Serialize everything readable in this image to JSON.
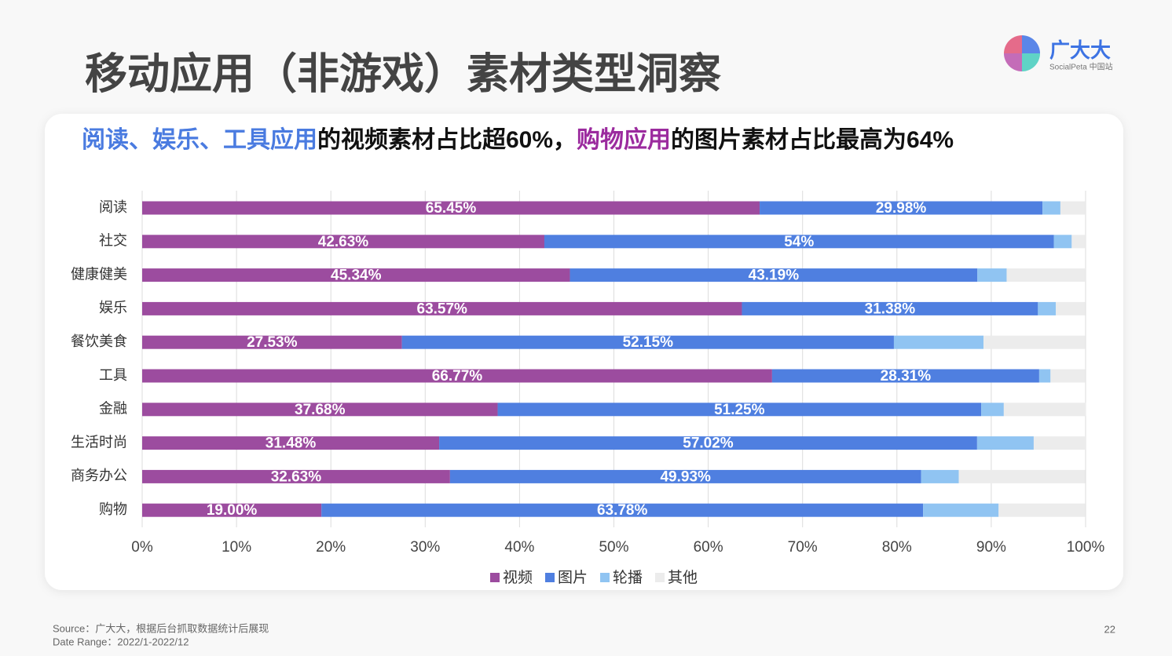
{
  "title": "移动应用（非游戏）素材类型洞察",
  "logo": {
    "name": "广大大",
    "sub": "SocialPeta 中国站"
  },
  "source": "Source：广大大，根据后台抓取数据统计后展现",
  "date_range": "Date Range：2022/1-2022/12",
  "page_number": "22",
  "chart_data": {
    "type": "stacked-bar-horizontal",
    "subtitle": [
      "阅读、娱乐、工具应用",
      "的视频素材占比超60%，",
      "购物应用",
      "的图片素材占比最高为64%"
    ],
    "categories": [
      "阅读",
      "社交",
      "健康健美",
      "娱乐",
      "餐饮美食",
      "工具",
      "金融",
      "生活时尚",
      "商务办公",
      "购物"
    ],
    "series": [
      {
        "name": "视频",
        "color": "#9c4c9f",
        "values": [
          65.45,
          42.63,
          45.34,
          63.57,
          27.53,
          66.77,
          37.68,
          31.48,
          32.63,
          19.0
        ],
        "value_labels": [
          "65.45%",
          "42.63%",
          "45.34%",
          "63.57%",
          "27.53%",
          "66.77%",
          "37.68%",
          "31.48%",
          "32.63%",
          "19.00%"
        ]
      },
      {
        "name": "图片",
        "color": "#4f7fe0",
        "values": [
          29.98,
          54,
          43.19,
          31.38,
          52.15,
          28.31,
          51.25,
          57.02,
          49.93,
          63.78
        ],
        "value_labels": [
          "29.98%",
          "54%",
          "43.19%",
          "31.38%",
          "52.15%",
          "28.31%",
          "51.25%",
          "57.02%",
          "49.93%",
          "63.78%"
        ]
      },
      {
        "name": "轮播",
        "color": "#90c4f2",
        "values": [
          1.9,
          1.9,
          3.1,
          1.9,
          9.5,
          1.2,
          2.4,
          6.0,
          4.0,
          8.0
        ]
      },
      {
        "name": "其他",
        "color": "#ececec",
        "values": [
          2.6,
          1.4,
          8.3,
          3.1,
          10.8,
          3.7,
          8.7,
          5.5,
          13.4,
          9.2
        ]
      }
    ],
    "xlim": [
      0,
      100
    ],
    "xticks": [
      {
        "value": 0,
        "label": "0%"
      },
      {
        "value": 10,
        "label": "10%"
      },
      {
        "value": 20,
        "label": "20%"
      },
      {
        "value": 30,
        "label": "30%"
      },
      {
        "value": 40,
        "label": "40%"
      },
      {
        "value": 50,
        "label": "50%"
      },
      {
        "value": 60,
        "label": "60%"
      },
      {
        "value": 70,
        "label": "70%"
      },
      {
        "value": 80,
        "label": "80%"
      },
      {
        "value": 90,
        "label": "90%"
      },
      {
        "value": 100,
        "label": "100%"
      }
    ],
    "grid": true,
    "legend": "bottom"
  }
}
